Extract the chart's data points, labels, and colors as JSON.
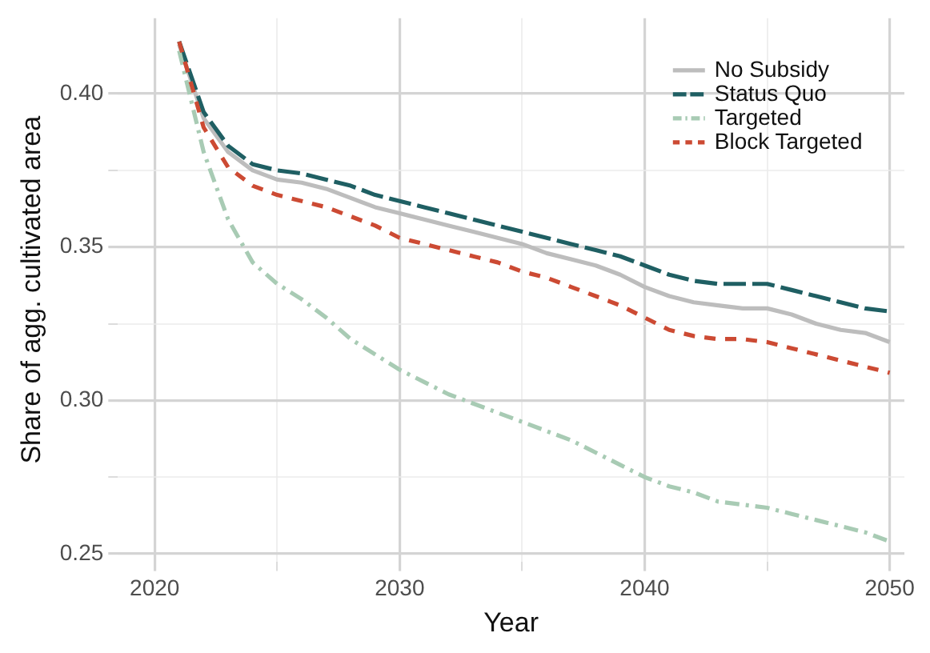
{
  "chart_data": {
    "type": "line",
    "xlabel": "Year",
    "ylabel": "Share of agg. cultivated area",
    "x": [
      2021,
      2022,
      2023,
      2024,
      2025,
      2026,
      2027,
      2028,
      2029,
      2030,
      2031,
      2032,
      2033,
      2034,
      2035,
      2036,
      2037,
      2038,
      2039,
      2040,
      2041,
      2042,
      2043,
      2044,
      2045,
      2046,
      2047,
      2048,
      2049,
      2050
    ],
    "series": [
      {
        "name": "No Subsidy",
        "color": "#bdbdbd",
        "line_style": "solid",
        "values": [
          0.416,
          0.392,
          0.381,
          0.375,
          0.372,
          0.371,
          0.369,
          0.366,
          0.363,
          0.361,
          0.359,
          0.357,
          0.355,
          0.353,
          0.351,
          0.348,
          0.346,
          0.344,
          0.341,
          0.337,
          0.334,
          0.332,
          0.331,
          0.33,
          0.33,
          0.328,
          0.325,
          0.323,
          0.322,
          0.319
        ]
      },
      {
        "name": "Status Quo",
        "color": "#1f5f63",
        "line_style": "dashed",
        "values": [
          0.417,
          0.394,
          0.383,
          0.377,
          0.375,
          0.374,
          0.372,
          0.37,
          0.367,
          0.365,
          0.363,
          0.361,
          0.359,
          0.357,
          0.355,
          0.353,
          0.351,
          0.349,
          0.347,
          0.344,
          0.341,
          0.339,
          0.338,
          0.338,
          0.338,
          0.336,
          0.334,
          0.332,
          0.33,
          0.329
        ]
      },
      {
        "name": "Targeted",
        "color": "#a8cbb4",
        "line_style": "dashed",
        "values": [
          0.414,
          0.381,
          0.359,
          0.345,
          0.338,
          0.333,
          0.327,
          0.32,
          0.315,
          0.31,
          0.306,
          0.302,
          0.299,
          0.296,
          0.293,
          0.29,
          0.287,
          0.283,
          0.279,
          0.275,
          0.272,
          0.27,
          0.267,
          0.266,
          0.265,
          0.263,
          0.261,
          0.259,
          0.257,
          0.254
        ]
      },
      {
        "name": "Block Targeted",
        "color": "#cc4a33",
        "line_style": "dashed",
        "values": [
          0.417,
          0.389,
          0.376,
          0.37,
          0.367,
          0.365,
          0.363,
          0.36,
          0.357,
          0.353,
          0.351,
          0.349,
          0.347,
          0.345,
          0.342,
          0.34,
          0.337,
          0.334,
          0.331,
          0.327,
          0.323,
          0.321,
          0.32,
          0.32,
          0.319,
          0.317,
          0.315,
          0.313,
          0.311,
          0.309
        ]
      }
    ],
    "xlim": [
      2018.5,
      2050.6
    ],
    "xticks": [
      2020,
      {
        "value": 2025,
        "label": null
      },
      2030,
      {
        "value": 2035,
        "label": null
      },
      2040,
      {
        "value": 2045,
        "label": null
      },
      2050
    ],
    "ylim": [
      0.2475,
      0.4246
    ],
    "yticks": [
      {
        "value": 0.25,
        "label": "0.25"
      },
      {
        "value": 0.275,
        "label": null
      },
      {
        "value": 0.3,
        "label": "0.30"
      },
      {
        "value": 0.325,
        "label": null
      },
      {
        "value": 0.35,
        "label": "0.35"
      },
      {
        "value": 0.375,
        "label": null
      },
      {
        "value": 0.4,
        "label": "0.40"
      }
    ],
    "grid": true,
    "legend": "top right",
    "marker": "none"
  }
}
